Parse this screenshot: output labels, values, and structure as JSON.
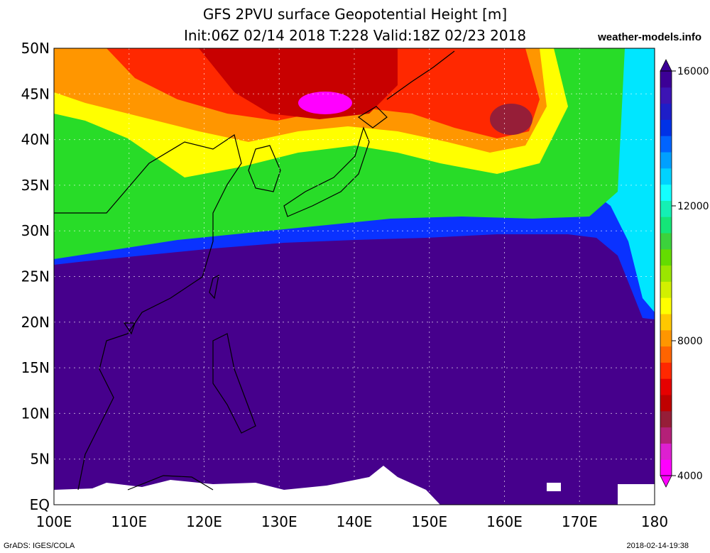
{
  "header": {
    "title_line1": "GFS 2PVU surface Geopotential Height [m]",
    "title_line2": "Init:06Z 02/14 2018 T:228 Valid:18Z 02/23 2018",
    "credit": "weather-models.info"
  },
  "axes": {
    "lat_labels": [
      "50N",
      "45N",
      "40N",
      "35N",
      "30N",
      "25N",
      "20N",
      "15N",
      "10N",
      "5N",
      "EQ"
    ],
    "lon_labels": [
      "100E",
      "110E",
      "120E",
      "130E",
      "140E",
      "150E",
      "160E",
      "170E",
      "180"
    ]
  },
  "colorbar": {
    "labels": [
      "16000",
      "12000",
      "8000",
      "4000"
    ],
    "colors": [
      "#ff00ff",
      "#dd20d0",
      "#b42078",
      "#961e38",
      "#bf0000",
      "#e60000",
      "#ff2800",
      "#ff6400",
      "#ff9600",
      "#ffc800",
      "#ffff00",
      "#d2f000",
      "#9be600",
      "#64dc00",
      "#3cd23c",
      "#14e678",
      "#14f0b4",
      "#14ffff",
      "#00d2ff",
      "#00a0ff",
      "#0064ff",
      "#0032e6",
      "#1e1ec8",
      "#3c14b4",
      "#3c0096"
    ],
    "map_colors": {
      "background_low": "#46008c",
      "tropopause_edge": "#0a32ff",
      "green": "#28dc28",
      "yellow": "#ffff00",
      "orange": "#ff9600",
      "red": "#ff2800",
      "dark_red": "#c80000",
      "magenta": "#ff00ff",
      "cyan": "#00e6ff"
    }
  },
  "footer": {
    "left": "GrADS: IGES/COLA",
    "right": "2018-02-14-19:38"
  }
}
